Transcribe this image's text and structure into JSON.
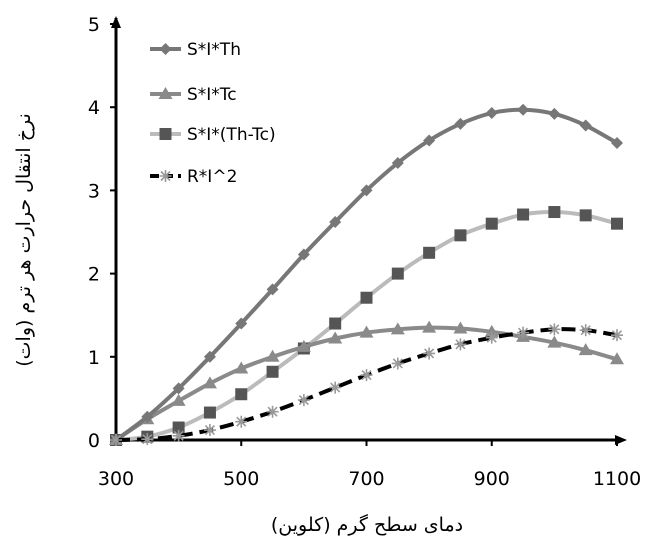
{
  "chart_data": {
    "type": "line",
    "title": "",
    "xlabel": "دمای سطح گرم (کلوین)",
    "ylabel": "نرخ انتقال حرارت هر ترم (وات)",
    "xlim": [
      300,
      1100
    ],
    "ylim": [
      0,
      5
    ],
    "x_ticks": [
      300,
      500,
      700,
      900,
      1100
    ],
    "y_ticks": [
      0,
      1,
      2,
      3,
      4,
      5
    ],
    "grid": false,
    "legend_position": "top-left",
    "x": [
      300,
      350,
      400,
      450,
      500,
      550,
      600,
      650,
      700,
      750,
      800,
      850,
      900,
      950,
      1000,
      1050,
      1100
    ],
    "series": [
      {
        "name": "S*I*Th",
        "marker": "diamond",
        "color": "#777777",
        "dash": "solid",
        "values": [
          0,
          0.28,
          0.62,
          1.0,
          1.4,
          1.81,
          2.23,
          2.62,
          3.0,
          3.33,
          3.6,
          3.8,
          3.93,
          3.97,
          3.92,
          3.78,
          3.57
        ]
      },
      {
        "name": "S*I*Tc",
        "marker": "triangle",
        "color": "#8a8a8a",
        "dash": "solid",
        "values": [
          0,
          0.25,
          0.47,
          0.68,
          0.86,
          1.0,
          1.12,
          1.22,
          1.29,
          1.33,
          1.35,
          1.34,
          1.3,
          1.24,
          1.17,
          1.08,
          0.97
        ]
      },
      {
        "name": "S*I*(Th-Tc)",
        "marker": "square",
        "color": "#bbbbbb",
        "marker_color": "#555555",
        "dash": "solid",
        "values": [
          0,
          0.04,
          0.15,
          0.33,
          0.55,
          0.82,
          1.1,
          1.4,
          1.71,
          2.0,
          2.25,
          2.46,
          2.6,
          2.71,
          2.74,
          2.7,
          2.6
        ]
      },
      {
        "name": "R*I^2",
        "marker": "star",
        "color": "#000000",
        "marker_color": "#999999",
        "dash": "dashed",
        "values": [
          0,
          0.01,
          0.05,
          0.12,
          0.22,
          0.34,
          0.48,
          0.63,
          0.78,
          0.92,
          1.04,
          1.15,
          1.23,
          1.29,
          1.33,
          1.32,
          1.26
        ]
      }
    ]
  }
}
